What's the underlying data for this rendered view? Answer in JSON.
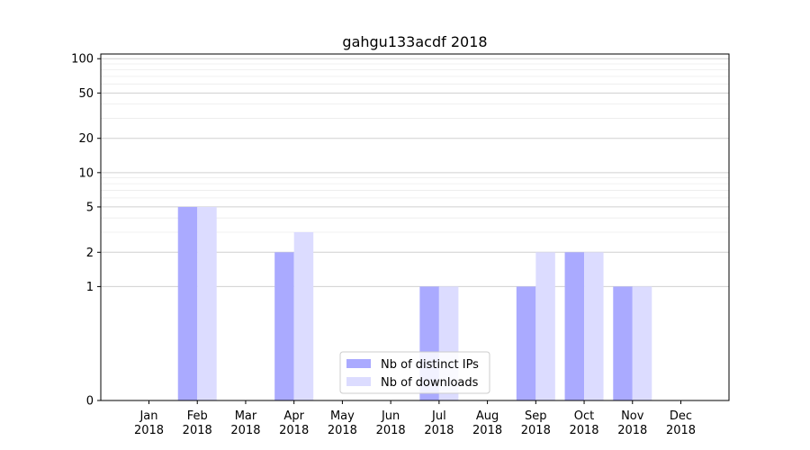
{
  "chart_data": {
    "type": "bar",
    "title": "gahgu133acdf 2018",
    "categories": [
      [
        "Jan",
        "2018"
      ],
      [
        "Feb",
        "2018"
      ],
      [
        "Mar",
        "2018"
      ],
      [
        "Apr",
        "2018"
      ],
      [
        "May",
        "2018"
      ],
      [
        "Jun",
        "2018"
      ],
      [
        "Jul",
        "2018"
      ],
      [
        "Aug",
        "2018"
      ],
      [
        "Sep",
        "2018"
      ],
      [
        "Oct",
        "2018"
      ],
      [
        "Nov",
        "2018"
      ],
      [
        "Dec",
        "2018"
      ]
    ],
    "series": [
      {
        "name": "Nb of distinct IPs",
        "color": "#aaaaff",
        "values": [
          0,
          5,
          0,
          2,
          0,
          0,
          1,
          0,
          1,
          2,
          1,
          0
        ]
      },
      {
        "name": "Nb of downloads",
        "color": "#dcdcff",
        "values": [
          0,
          5,
          0,
          3,
          0,
          0,
          1,
          0,
          2,
          2,
          1,
          0
        ]
      }
    ],
    "y_scale": "symlog",
    "ylim": [
      0,
      110
    ],
    "yticks": [
      0,
      1,
      2,
      5,
      10,
      20,
      50,
      100
    ],
    "ytick_labels": [
      "0",
      "1",
      "2",
      "5",
      "10",
      "20",
      "50",
      "100"
    ],
    "grid": "horizontal",
    "legend": "lower-center"
  }
}
